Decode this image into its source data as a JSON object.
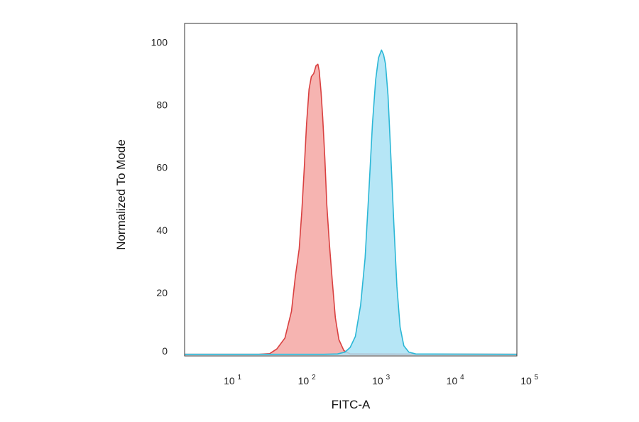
{
  "chart_data": {
    "type": "area",
    "title": "",
    "xlabel": "FITC-A",
    "ylabel": "Normalized To Mode",
    "x_scale": "log",
    "xlim": [
      2,
      60000
    ],
    "ylim": [
      0,
      106
    ],
    "x_ticks": [
      {
        "value": 10,
        "base": "10",
        "exp": "1"
      },
      {
        "value": 100,
        "base": "10",
        "exp": "2"
      },
      {
        "value": 1000,
        "base": "10",
        "exp": "3"
      },
      {
        "value": 10000,
        "base": "10",
        "exp": "4"
      },
      {
        "value": 100000,
        "base": "10",
        "exp": "5"
      }
    ],
    "y_ticks": [
      {
        "value": 0,
        "label": "0"
      },
      {
        "value": 20,
        "label": "20"
      },
      {
        "value": 40,
        "label": "40"
      },
      {
        "value": 60,
        "label": "60"
      },
      {
        "value": 80,
        "label": "80"
      },
      {
        "value": 100,
        "label": "100"
      }
    ],
    "grid": false,
    "legend": "none",
    "series": [
      {
        "fill": "#f4a3a0",
        "stroke": "#d94040",
        "points": [
          [
            2,
            0.3
          ],
          [
            20,
            0.3
          ],
          [
            28,
            0.5
          ],
          [
            35,
            2
          ],
          [
            45,
            5.5
          ],
          [
            55,
            14
          ],
          [
            62,
            25
          ],
          [
            70,
            34
          ],
          [
            76,
            46
          ],
          [
            82,
            60
          ],
          [
            88,
            74
          ],
          [
            95,
            85
          ],
          [
            102,
            89
          ],
          [
            110,
            90
          ],
          [
            118,
            92.5
          ],
          [
            125,
            93
          ],
          [
            130,
            91
          ],
          [
            138,
            84
          ],
          [
            145,
            76
          ],
          [
            155,
            63
          ],
          [
            165,
            48
          ],
          [
            178,
            36
          ],
          [
            195,
            24
          ],
          [
            215,
            12
          ],
          [
            240,
            5
          ],
          [
            280,
            1.5
          ],
          [
            340,
            0.4
          ],
          [
            60000,
            0.3
          ]
        ]
      },
      {
        "fill": "#a6e1f4",
        "stroke": "#2bb7d6",
        "points": [
          [
            2,
            0.3
          ],
          [
            150,
            0.3
          ],
          [
            230,
            0.4
          ],
          [
            290,
            1
          ],
          [
            340,
            2.5
          ],
          [
            400,
            6
          ],
          [
            470,
            16
          ],
          [
            540,
            31
          ],
          [
            610,
            53
          ],
          [
            680,
            74
          ],
          [
            750,
            88
          ],
          [
            820,
            95
          ],
          [
            900,
            97.5
          ],
          [
            960,
            96
          ],
          [
            1020,
            93
          ],
          [
            1100,
            83
          ],
          [
            1200,
            64
          ],
          [
            1320,
            42
          ],
          [
            1450,
            22
          ],
          [
            1600,
            9
          ],
          [
            1800,
            3
          ],
          [
            2100,
            1
          ],
          [
            2600,
            0.4
          ],
          [
            60000,
            0.3
          ]
        ]
      }
    ]
  }
}
